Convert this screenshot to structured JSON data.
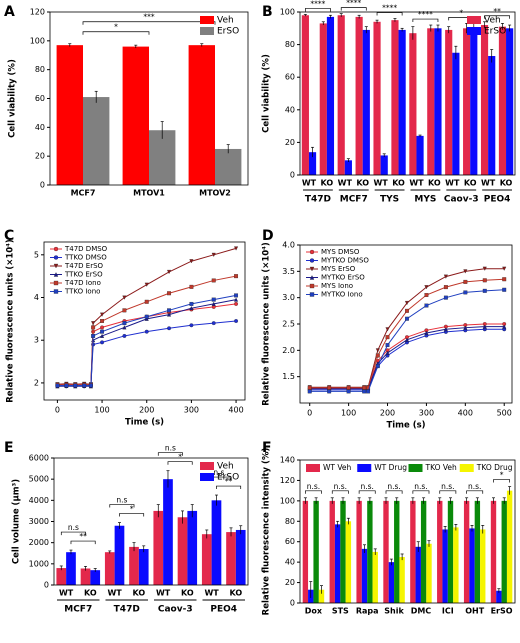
{
  "chart_data": [
    {
      "type": "bar",
      "panel": "A",
      "ylabel": "Cell viability (%)",
      "legend": "upper right",
      "categories": [
        "MCF7",
        "MTOV1",
        "MTOV2"
      ],
      "series": [
        {
          "name": "Veh",
          "color": "#ff0000",
          "values": [
            97,
            96,
            97
          ],
          "errors": [
            1,
            1,
            1
          ]
        },
        {
          "name": "ErSO",
          "color": "#808080",
          "values": [
            61,
            38,
            25
          ],
          "errors": [
            4,
            6,
            3
          ]
        }
      ],
      "ylim": [
        0,
        120
      ],
      "yticks": [
        0,
        20,
        40,
        60,
        80,
        100,
        120
      ],
      "annotations": [
        {
          "text": "*",
          "from": 0,
          "to": 1
        },
        {
          "text": "***",
          "from": 0,
          "to": 2
        }
      ]
    },
    {
      "type": "bar",
      "panel": "B",
      "ylabel": "Cell viability (%)",
      "legend": "upper right",
      "categories": [
        "WT",
        "KO",
        "WT",
        "KO",
        "WT",
        "KO",
        "WT",
        "KO",
        "WT",
        "KO",
        "WT",
        "KO"
      ],
      "groups": [
        "T47D",
        "MCF7",
        "TYS",
        "MYS",
        "Caov-3",
        "PEO4"
      ],
      "series": [
        {
          "name": "Veh",
          "color": "#e3284b",
          "values": [
            98,
            93,
            98,
            97,
            94,
            95,
            87,
            90,
            89,
            90,
            92,
            91
          ],
          "errors": [
            0.5,
            1,
            1,
            1,
            1,
            1,
            4,
            2,
            2,
            3,
            2,
            2
          ]
        },
        {
          "name": "ErSO",
          "color": "#0a0aff",
          "values": [
            14,
            97,
            9,
            89,
            12,
            89,
            24,
            90,
            75,
            90,
            73,
            90
          ],
          "errors": [
            3,
            1,
            1,
            2,
            1,
            1,
            0.5,
            2,
            4,
            3,
            4,
            2
          ]
        }
      ],
      "ylim": [
        0,
        100
      ],
      "yticks": [
        0,
        20,
        40,
        60,
        80,
        100
      ],
      "group_annotations": [
        "****",
        "****",
        "****",
        "****",
        "*",
        "**"
      ]
    },
    {
      "type": "line",
      "panel": "C",
      "ylabel": "Relative fluorescence units (×10⁴)",
      "xlabel": "Time (s)",
      "legend": "upper left",
      "x": [
        0,
        20,
        40,
        60,
        75,
        80,
        100,
        150,
        200,
        250,
        300,
        350,
        400
      ],
      "series": [
        {
          "name": "T47D DMSO",
          "color": "#e8303a",
          "marker": "circle",
          "values": [
            1.95,
            1.95,
            1.95,
            1.95,
            1.95,
            3.2,
            3.3,
            3.45,
            3.55,
            3.65,
            3.72,
            3.78,
            3.85
          ]
        },
        {
          "name": "TTKO DMSO",
          "color": "#1f2fd0",
          "marker": "circle",
          "values": [
            1.93,
            1.92,
            1.93,
            1.92,
            1.93,
            2.9,
            2.95,
            3.1,
            3.2,
            3.28,
            3.35,
            3.4,
            3.45
          ]
        },
        {
          "name": "T47D ErSO",
          "color": "#8b1a1a",
          "marker": "triangle-down",
          "values": [
            1.97,
            1.98,
            1.97,
            1.98,
            1.97,
            3.4,
            3.6,
            4.0,
            4.3,
            4.6,
            4.85,
            5.0,
            5.15
          ]
        },
        {
          "name": "TTKO ErSO",
          "color": "#1a1a8b",
          "marker": "triangle-up",
          "values": [
            1.92,
            1.93,
            1.92,
            1.93,
            1.92,
            3.0,
            3.1,
            3.3,
            3.5,
            3.6,
            3.75,
            3.85,
            3.95
          ]
        },
        {
          "name": "T47D Iono",
          "color": "#c0392b",
          "marker": "square",
          "values": [
            1.96,
            1.96,
            1.96,
            1.96,
            1.96,
            3.3,
            3.45,
            3.7,
            3.9,
            4.1,
            4.25,
            4.4,
            4.5
          ]
        },
        {
          "name": "TTKO Iono",
          "color": "#2040c0",
          "marker": "square",
          "values": [
            1.94,
            1.94,
            1.94,
            1.94,
            1.94,
            3.1,
            3.2,
            3.4,
            3.55,
            3.7,
            3.85,
            3.95,
            4.05
          ]
        }
      ],
      "xlim": [
        -30,
        420
      ],
      "xticks": [
        0,
        100,
        200,
        300,
        400
      ],
      "ylim": [
        1.6,
        5.3
      ],
      "yticks": [
        2,
        3,
        4,
        5
      ]
    },
    {
      "type": "line",
      "panel": "D",
      "ylabel": "Relative fluorescence units (×10⁴)",
      "xlabel": "Time (s)",
      "legend": "upper left",
      "x": [
        0,
        50,
        100,
        140,
        150,
        175,
        200,
        250,
        300,
        350,
        400,
        450,
        500
      ],
      "series": [
        {
          "name": "MYS DMSO",
          "color": "#e8303a",
          "marker": "circle",
          "values": [
            1.28,
            1.28,
            1.28,
            1.28,
            1.28,
            1.8,
            2.0,
            2.25,
            2.38,
            2.45,
            2.48,
            2.5,
            2.5
          ]
        },
        {
          "name": "MYTKO DMSO",
          "color": "#1f2fd0",
          "marker": "circle",
          "values": [
            1.25,
            1.25,
            1.25,
            1.25,
            1.25,
            1.7,
            1.9,
            2.15,
            2.28,
            2.35,
            2.38,
            2.4,
            2.4
          ]
        },
        {
          "name": "MYS ErSO",
          "color": "#8b1a1a",
          "marker": "triangle-down",
          "values": [
            1.3,
            1.3,
            1.3,
            1.3,
            1.3,
            2.0,
            2.4,
            2.9,
            3.2,
            3.4,
            3.5,
            3.55,
            3.55
          ]
        },
        {
          "name": "MYTKO ErSO",
          "color": "#1a1a8b",
          "marker": "triangle-up",
          "values": [
            1.27,
            1.27,
            1.27,
            1.27,
            1.27,
            1.75,
            1.95,
            2.2,
            2.33,
            2.4,
            2.43,
            2.45,
            2.45
          ]
        },
        {
          "name": "MYS Iono",
          "color": "#c0392b",
          "marker": "square",
          "values": [
            1.29,
            1.29,
            1.29,
            1.29,
            1.29,
            1.9,
            2.25,
            2.75,
            3.05,
            3.2,
            3.3,
            3.33,
            3.35
          ]
        },
        {
          "name": "MYTKO Iono",
          "color": "#2040c0",
          "marker": "square",
          "values": [
            1.22,
            1.22,
            1.22,
            1.22,
            1.22,
            1.7,
            2.1,
            2.6,
            2.85,
            3.0,
            3.1,
            3.13,
            3.15
          ]
        }
      ],
      "xlim": [
        -25,
        520
      ],
      "xticks": [
        0,
        100,
        200,
        300,
        400,
        500
      ],
      "ylim": [
        1.0,
        4.0
      ],
      "yticks": [
        1.5,
        {
          "value": 2,
          "label": "2.0"
        },
        2.5,
        {
          "value": 3,
          "label": "3.0"
        },
        3.5,
        {
          "value": 4,
          "label": "4.0"
        }
      ]
    },
    {
      "type": "bar",
      "panel": "E",
      "ylabel": "Cell volume (µm³)",
      "legend": "upper right",
      "categories": [
        "WT",
        "KO",
        "WT",
        "KO",
        "WT",
        "KO",
        "WT",
        "KO"
      ],
      "groups": [
        "MCF7",
        "T47D",
        "Caov-3",
        "PEO4"
      ],
      "series": [
        {
          "name": "Veh",
          "color": "#e3284b",
          "values": [
            800,
            780,
            1550,
            1800,
            3500,
            3200,
            2400,
            2500
          ],
          "errors": [
            100,
            100,
            60,
            200,
            300,
            300,
            200,
            200
          ]
        },
        {
          "name": "ErSO",
          "color": "#0a0aff",
          "values": [
            1550,
            700,
            2800,
            1700,
            5000,
            3500,
            4000,
            2600
          ],
          "errors": [
            100,
            80,
            150,
            150,
            400,
            300,
            250,
            200
          ]
        }
      ],
      "ylim": [
        0,
        6000
      ],
      "yticks": [
        0,
        1000,
        2000,
        3000,
        4000,
        5000,
        6000
      ],
      "pair_annotations": [
        [
          "n.s",
          "**"
        ],
        [
          "n.s",
          "*"
        ],
        [
          "n.s",
          "*"
        ],
        [
          "n.s",
          "**"
        ]
      ]
    },
    {
      "type": "bar",
      "panel": "F",
      "ylabel": "Relative fluorescence intensity (%)",
      "legend": "top",
      "categories": [
        "Dox",
        "STS",
        "Rapa",
        "Shik",
        "DMC",
        "ICI",
        "OHT",
        "ErSO"
      ],
      "series": [
        {
          "name": "WT Veh",
          "color": "#e3284b",
          "values": [
            100,
            100,
            100,
            100,
            100,
            100,
            100,
            100
          ],
          "errors": [
            3,
            3,
            3,
            3,
            3,
            3,
            3,
            3
          ]
        },
        {
          "name": "WT Drug",
          "color": "#0a0aff",
          "values": [
            13,
            77,
            53,
            40,
            55,
            72,
            73,
            12
          ],
          "errors": [
            8,
            3,
            4,
            3,
            5,
            3,
            3,
            2
          ]
        },
        {
          "name": "TKO Veh",
          "color": "#0a8a0a",
          "values": [
            100,
            100,
            100,
            100,
            100,
            100,
            100,
            100
          ],
          "errors": [
            3,
            3,
            3,
            3,
            3,
            3,
            3,
            3
          ]
        },
        {
          "name": "TKO Drug",
          "color": "#f5f500",
          "values": [
            13,
            80,
            50,
            45,
            58,
            74,
            72,
            110
          ],
          "errors": [
            4,
            3,
            3,
            3,
            3,
            3,
            4,
            4
          ]
        }
      ],
      "ylim": [
        0,
        140
      ],
      "yticks": [
        0,
        20,
        40,
        60,
        80,
        100,
        120,
        140
      ],
      "category_annotations": [
        "n.s.",
        "n.s.",
        "n.s.",
        "n.s.",
        "n.s.",
        "n.s.",
        "n.s.",
        "*"
      ]
    }
  ]
}
